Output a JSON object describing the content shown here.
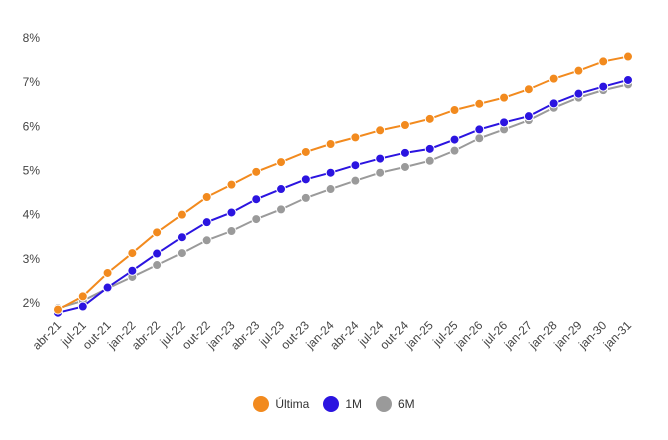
{
  "chart_data": {
    "type": "line",
    "categories": [
      "abr-21",
      "jul-21",
      "out-21",
      "jan-22",
      "abr-22",
      "jul-22",
      "out-22",
      "jan-23",
      "abr-23",
      "jul-23",
      "out-23",
      "jan-24",
      "abr-24",
      "jul-24",
      "out-24",
      "jan-25",
      "jul-25",
      "jan-26",
      "jul-26",
      "jan-27",
      "jan-28",
      "jan-29",
      "jan-30",
      "jan-31"
    ],
    "x_ticks": [
      "abr-21",
      "jul-21",
      "out-21",
      "jan-22",
      "abr-22",
      "jul-22",
      "out-22",
      "jan-23",
      "abr-23",
      "jul-23",
      "out-23",
      "jan-24",
      "abr-24",
      "jul-24",
      "out-24",
      "jan-25",
      "jul-25",
      "jan-26",
      "jul-26",
      "jan-27",
      "jan-28",
      "jan-29",
      "jan-30",
      "jan-31"
    ],
    "series": [
      {
        "name": "Última",
        "color": "#f28a1e",
        "values": [
          1.85,
          2.15,
          2.68,
          3.13,
          3.6,
          4.0,
          4.4,
          4.68,
          4.97,
          5.19,
          5.42,
          5.6,
          5.75,
          5.91,
          6.03,
          6.17,
          6.37,
          6.51,
          6.65,
          6.84,
          7.08,
          7.26,
          7.47,
          7.58
        ]
      },
      {
        "name": "1M",
        "color": "#2b14e0",
        "values": [
          1.78,
          1.92,
          2.35,
          2.73,
          3.12,
          3.49,
          3.83,
          4.05,
          4.35,
          4.58,
          4.8,
          4.95,
          5.12,
          5.27,
          5.4,
          5.49,
          5.7,
          5.93,
          6.09,
          6.23,
          6.52,
          6.74,
          6.9,
          7.05
        ]
      },
      {
        "name": "6M",
        "color": "#9a9a9a",
        "values": [
          1.88,
          2.05,
          2.33,
          2.59,
          2.86,
          3.13,
          3.42,
          3.63,
          3.9,
          4.12,
          4.38,
          4.58,
          4.77,
          4.95,
          5.08,
          5.22,
          5.45,
          5.73,
          5.93,
          6.14,
          6.42,
          6.65,
          6.82,
          6.95
        ]
      }
    ],
    "y_ticks": [
      "2%",
      "3%",
      "4%",
      "5%",
      "6%",
      "7%",
      "8%"
    ],
    "ylim": [
      1.55,
      8.0
    ],
    "legend_position": "bottom",
    "grid": false
  }
}
